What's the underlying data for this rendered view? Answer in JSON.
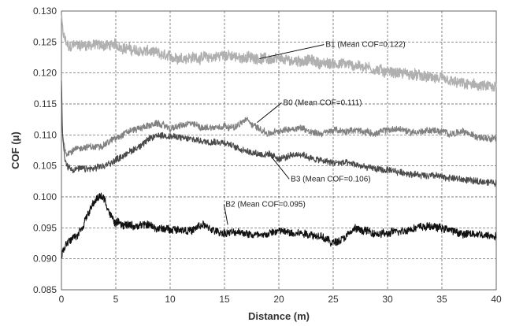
{
  "chart_data": {
    "type": "line",
    "title": "",
    "xlabel": "Distance (m)",
    "ylabel": "COF (μ)",
    "xlim": [
      0,
      40
    ],
    "ylim": [
      0.085,
      0.13
    ],
    "xticks": [
      0,
      5,
      10,
      15,
      20,
      25,
      30,
      35,
      40
    ],
    "yticks": [
      0.085,
      0.09,
      0.095,
      0.1,
      0.105,
      0.11,
      0.115,
      0.12,
      0.125,
      0.13
    ],
    "ytick_labels": [
      "0.085",
      "0.090",
      "0.095",
      "0.100",
      "0.105",
      "0.110",
      "0.115",
      "0.120",
      "0.125",
      "0.130"
    ],
    "grid": true,
    "legend": "none",
    "series": [
      {
        "name": "B1 (Mean COF=0.122)",
        "color": "#b0b0b0",
        "noise": 0.0016,
        "x": [
          0,
          0.1,
          0.2,
          0.4,
          0.7,
          1,
          2,
          3,
          4,
          5,
          6,
          7,
          8,
          9,
          10,
          11,
          12,
          13,
          14,
          15,
          16,
          17,
          18,
          19,
          20,
          21,
          22,
          23,
          24,
          25,
          26,
          27,
          28,
          29,
          30,
          31,
          32,
          33,
          34,
          35,
          36,
          37,
          38,
          39,
          40
        ],
        "y": [
          0.129,
          0.127,
          0.126,
          0.125,
          0.124,
          0.1245,
          0.1245,
          0.1245,
          0.1245,
          0.1245,
          0.124,
          0.1235,
          0.1235,
          0.123,
          0.1225,
          0.1225,
          0.1225,
          0.1225,
          0.1225,
          0.123,
          0.1225,
          0.1225,
          0.1225,
          0.1222,
          0.1222,
          0.122,
          0.122,
          0.122,
          0.1215,
          0.1215,
          0.1215,
          0.1212,
          0.121,
          0.1205,
          0.1202,
          0.12,
          0.1198,
          0.1195,
          0.1192,
          0.119,
          0.1185,
          0.1182,
          0.118,
          0.1178,
          0.1175
        ]
      },
      {
        "name": "B0 (Mean COF=0.111)",
        "color": "#808080",
        "noise": 0.001,
        "x": [
          0,
          0.1,
          0.3,
          0.5,
          1,
          2,
          3,
          4,
          5,
          6,
          7,
          8,
          9,
          10,
          11,
          12,
          13,
          14,
          15,
          16,
          17,
          18,
          19,
          20,
          21,
          22,
          23,
          24,
          25,
          26,
          27,
          28,
          29,
          30,
          31,
          32,
          33,
          34,
          35,
          36,
          37,
          38,
          39,
          40
        ],
        "y": [
          0.115,
          0.11,
          0.108,
          0.107,
          0.1075,
          0.108,
          0.108,
          0.1085,
          0.1095,
          0.1105,
          0.111,
          0.1115,
          0.1118,
          0.111,
          0.1115,
          0.1118,
          0.1112,
          0.1112,
          0.1115,
          0.1112,
          0.1125,
          0.1112,
          0.1102,
          0.1105,
          0.111,
          0.1112,
          0.1105,
          0.1102,
          0.1108,
          0.1105,
          0.1108,
          0.1105,
          0.1102,
          0.1108,
          0.111,
          0.1105,
          0.1105,
          0.1108,
          0.1105,
          0.1102,
          0.1105,
          0.1098,
          0.1096,
          0.1095
        ]
      },
      {
        "name": "B3 (Mean COF=0.106)",
        "color": "#4a4a4a",
        "noise": 0.001,
        "x": [
          0,
          0.1,
          0.3,
          0.5,
          1,
          2,
          3,
          4,
          5,
          6,
          7,
          8,
          9,
          10,
          11,
          12,
          13,
          14,
          15,
          16,
          17,
          18,
          19,
          20,
          21,
          22,
          23,
          24,
          25,
          26,
          27,
          28,
          29,
          30,
          31,
          32,
          33,
          34,
          35,
          36,
          37,
          38,
          39,
          40
        ],
        "y": [
          0.119,
          0.11,
          0.106,
          0.105,
          0.1045,
          0.1045,
          0.1045,
          0.105,
          0.106,
          0.107,
          0.108,
          0.1092,
          0.11,
          0.1098,
          0.1095,
          0.1093,
          0.109,
          0.109,
          0.1088,
          0.108,
          0.1075,
          0.107,
          0.1068,
          0.1062,
          0.1065,
          0.107,
          0.1062,
          0.1058,
          0.1055,
          0.1055,
          0.1052,
          0.1048,
          0.1045,
          0.1042,
          0.104,
          0.1038,
          0.1035,
          0.1035,
          0.1032,
          0.103,
          0.1028,
          0.1025,
          0.1025,
          0.1022
        ]
      },
      {
        "name": "B2 (Mean COF=0.095)",
        "color": "#111111",
        "noise": 0.0012,
        "x": [
          0,
          0.3,
          0.7,
          1,
          1.5,
          2,
          2.5,
          3,
          3.5,
          4,
          4.5,
          5,
          6,
          7,
          8,
          9,
          10,
          11,
          12,
          13,
          14,
          15,
          16,
          17,
          18,
          19,
          20,
          21,
          22,
          23,
          24,
          25,
          26,
          27,
          28,
          29,
          30,
          31,
          32,
          33,
          34,
          35,
          36,
          37,
          38,
          39,
          40
        ],
        "y": [
          0.0905,
          0.092,
          0.093,
          0.0935,
          0.094,
          0.0955,
          0.0975,
          0.099,
          0.1002,
          0.0995,
          0.097,
          0.0958,
          0.0955,
          0.0952,
          0.0955,
          0.0948,
          0.0948,
          0.0948,
          0.0945,
          0.0955,
          0.0945,
          0.0942,
          0.0942,
          0.0942,
          0.0938,
          0.094,
          0.0945,
          0.0942,
          0.0942,
          0.094,
          0.0935,
          0.0925,
          0.0935,
          0.0948,
          0.0945,
          0.094,
          0.094,
          0.0945,
          0.0948,
          0.0952,
          0.0952,
          0.095,
          0.0945,
          0.094,
          0.094,
          0.0938,
          0.0938
        ]
      }
    ],
    "annotations": [
      {
        "text": "B1 (Mean COF=0.122)",
        "series": 0,
        "at": [
          24.3,
          0.1242
        ],
        "point": [
          18.2,
          0.1223
        ]
      },
      {
        "text": "B0 (Mean COF=0.111)",
        "series": 1,
        "at": [
          20.4,
          0.1148
        ],
        "point": [
          18.0,
          0.112
        ]
      },
      {
        "text": "B3 (Mean COF=0.106)",
        "series": 2,
        "at": [
          21.1,
          0.1025
        ],
        "point": [
          19.3,
          0.1065
        ]
      },
      {
        "text": "B2 (Mean COF=0.095)",
        "series": 3,
        "at": [
          15.1,
          0.0984
        ],
        "point": [
          15.3,
          0.0955
        ]
      }
    ]
  }
}
